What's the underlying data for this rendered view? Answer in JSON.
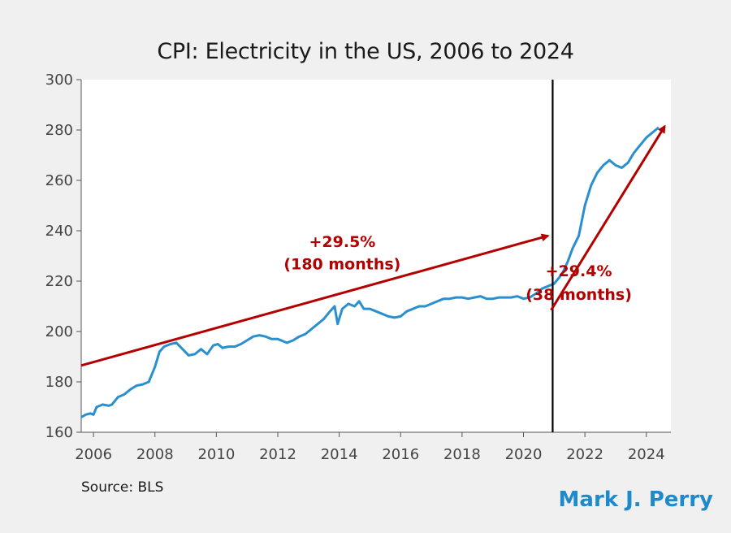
{
  "chart_data": {
    "type": "line",
    "title": "CPI: Electricity in the US, 2006 to 2024",
    "xlabel": "",
    "ylabel": "",
    "xlim": [
      2005.6,
      2024.8
    ],
    "ylim": [
      160,
      300
    ],
    "x_ticks": [
      "2006",
      "2008",
      "2010",
      "2012",
      "2014",
      "2016",
      "2018",
      "2020",
      "2022",
      "2024"
    ],
    "y_ticks": [
      "160",
      "180",
      "200",
      "220",
      "240",
      "260",
      "280",
      "300"
    ],
    "grid": false,
    "colors": {
      "series": "#2a8fcf",
      "arrow": "#b30000",
      "marker": "#000000"
    },
    "series": [
      {
        "x": [
          2005.6,
          2005.75,
          2005.9,
          2006.0,
          2006.1,
          2006.3,
          2006.5,
          2006.6,
          2006.8,
          2007.0,
          2007.2,
          2007.4,
          2007.6,
          2007.8,
          2007.9,
          2008.0,
          2008.15,
          2008.3,
          2008.5,
          2008.7,
          2008.9,
          2009.1,
          2009.3,
          2009.5,
          2009.7,
          2009.9,
          2010.05,
          2010.2,
          2010.4,
          2010.6,
          2010.8,
          2011.0,
          2011.2,
          2011.4,
          2011.6,
          2011.8,
          2012.0,
          2012.2,
          2012.3,
          2012.5,
          2012.7,
          2012.9,
          2013.1,
          2013.3,
          2013.5,
          2013.7,
          2013.85,
          2013.95,
          2014.1,
          2014.3,
          2014.5,
          2014.65,
          2014.8,
          2015.0,
          2015.2,
          2015.4,
          2015.6,
          2015.8,
          2016.0,
          2016.2,
          2016.4,
          2016.6,
          2016.8,
          2017.0,
          2017.2,
          2017.4,
          2017.6,
          2017.8,
          2018.0,
          2018.2,
          2018.4,
          2018.6,
          2018.8,
          2019.0,
          2019.2,
          2019.4,
          2019.6,
          2019.8,
          2020.0,
          2020.2,
          2020.4,
          2020.6,
          2020.8,
          2021.0,
          2021.2,
          2021.3,
          2021.45,
          2021.6,
          2021.8,
          2022.0,
          2022.2,
          2022.4,
          2022.6,
          2022.8,
          2023.0,
          2023.2,
          2023.4,
          2023.6,
          2023.8,
          2024.0,
          2024.2,
          2024.4
        ],
        "y": [
          166,
          167,
          167.5,
          167,
          170,
          171,
          170.5,
          171,
          174,
          175,
          177,
          178.5,
          179,
          180,
          183,
          186,
          192,
          194,
          195,
          195.5,
          193,
          190.5,
          191,
          193,
          191,
          194.5,
          195,
          193.5,
          194,
          194,
          195,
          196.5,
          198,
          198.5,
          198,
          197,
          197,
          196,
          195.5,
          196.5,
          198,
          199,
          201,
          203,
          205,
          208,
          210,
          203,
          209,
          211,
          210,
          212,
          209,
          209,
          208,
          207,
          206,
          205.5,
          206,
          208,
          209,
          210,
          210,
          211,
          212,
          213,
          213,
          213.5,
          213.5,
          213,
          213.5,
          214,
          213,
          213,
          213.5,
          213.5,
          213.5,
          214,
          213,
          213.5,
          215,
          217,
          218,
          219,
          222,
          224,
          228,
          233,
          238,
          250,
          258,
          263,
          266,
          268,
          266,
          265,
          267,
          271,
          274,
          277,
          279,
          281
        ]
      }
    ],
    "annotations": [
      {
        "text": "+29.5%",
        "x": 2014.1,
        "y": 233.6
      },
      {
        "text": "(180 months)",
        "x": 2014.1,
        "y": 224.6
      },
      {
        "text": "+29.4%",
        "x": 2021.8,
        "y": 222
      },
      {
        "text": "(38 months)",
        "x": 2021.8,
        "y": 212.6
      }
    ],
    "arrows": [
      {
        "from": [
          2005.6,
          186.5
        ],
        "to": [
          2020.8,
          238
        ]
      },
      {
        "from": [
          2020.9,
          208.5
        ],
        "to": [
          2024.6,
          281.5
        ]
      }
    ],
    "vline": {
      "x": 2020.95,
      "ymin": 160,
      "ymax": 300
    },
    "source": "Source: BLS",
    "author": "Mark J. Perry"
  }
}
